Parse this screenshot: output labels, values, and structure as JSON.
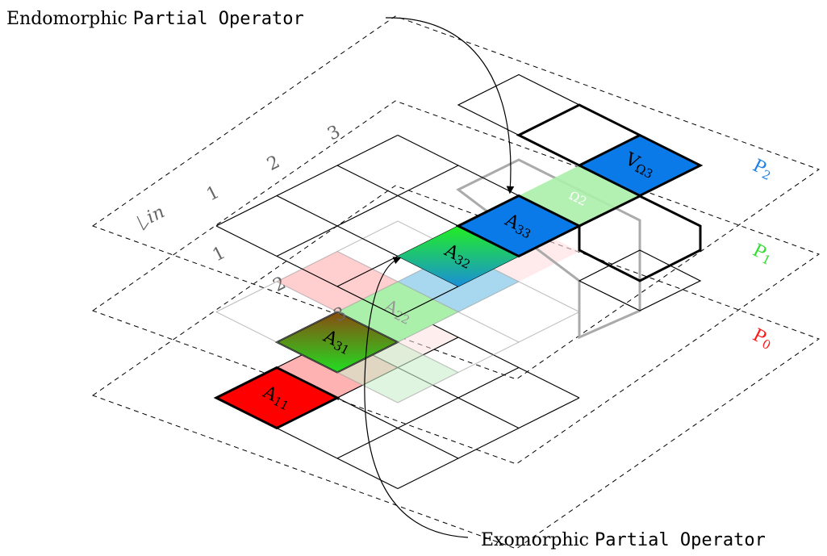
{
  "top_label": {
    "word": "Endomorphic",
    "mono": "Partial Operator"
  },
  "bottom_label": {
    "word": "Exomorphic",
    "mono": "Partial Operator"
  },
  "planes": [
    {
      "label": "P",
      "sub": "2"
    },
    {
      "label": "P",
      "sub": "1"
    },
    {
      "label": "P",
      "sub": "0"
    }
  ],
  "column_labels": [
    "1",
    "2",
    "3"
  ],
  "row_labels": [
    "1",
    "2",
    "3"
  ],
  "row_axis": "in",
  "cells": {
    "a33": {
      "label": "A",
      "sub": "33"
    },
    "a32": {
      "label": "A",
      "sub": "32"
    },
    "v3": {
      "label": "V",
      "sub": "Ω3"
    },
    "o2": {
      "label": "",
      "sub": "Ω2"
    },
    "a22": {
      "label": "A",
      "sub": "22"
    },
    "a31": {
      "label": "A",
      "sub": "31"
    },
    "a11": {
      "label": "A",
      "sub": "11"
    }
  }
}
